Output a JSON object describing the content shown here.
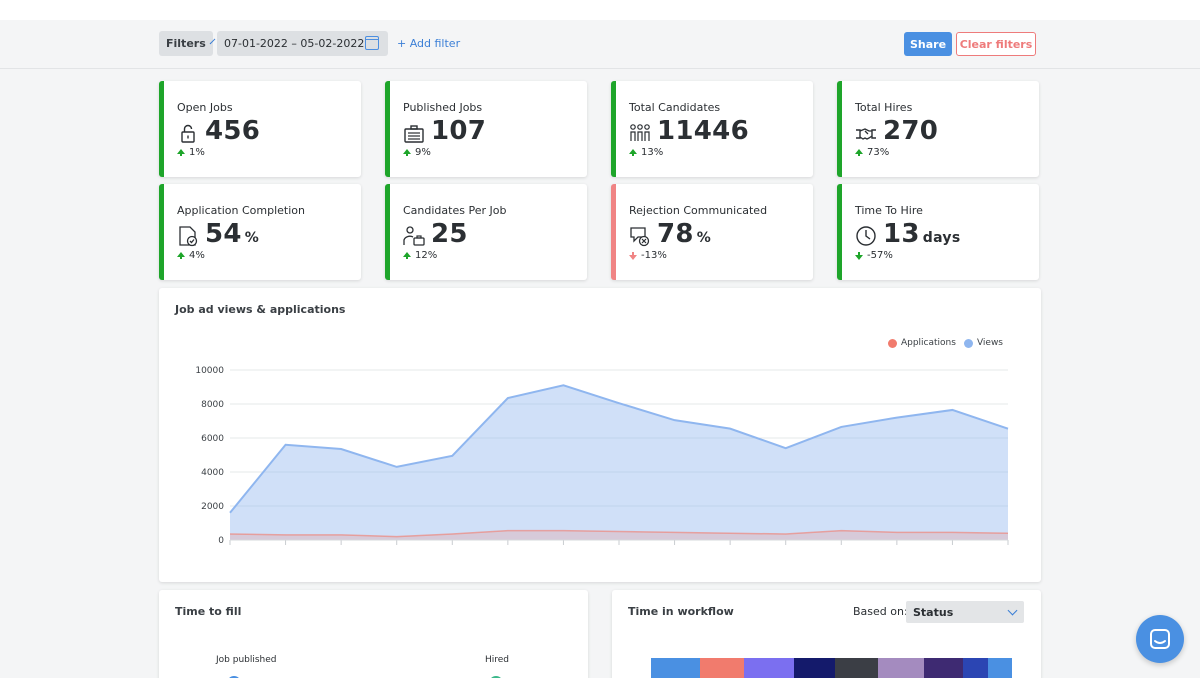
{
  "toolbar": {
    "filters_label": "Filters",
    "date_range": "07-01-2022 – 05-02-2022",
    "add_filter_label": "+ Add filter",
    "share_label": "Share",
    "clear_filters_label": "Clear filters"
  },
  "colors": {
    "accent": "#4a90e2",
    "positive": "#1ea52a",
    "negative": "#f08484",
    "applications": "#f17b6d",
    "views": "#8fb6ef"
  },
  "kpis": [
    {
      "title": "Open Jobs",
      "icon": "lock-icon",
      "value": "456",
      "unit": "",
      "change": "1%",
      "direction": "up"
    },
    {
      "title": "Published Jobs",
      "icon": "job-board-icon",
      "value": "107",
      "unit": "",
      "change": "9%",
      "direction": "up"
    },
    {
      "title": "Total Candidates",
      "icon": "people-icon",
      "value": "11446",
      "unit": "",
      "change": "13%",
      "direction": "up"
    },
    {
      "title": "Total Hires",
      "icon": "handshake-icon",
      "value": "270",
      "unit": "",
      "change": "73%",
      "direction": "up"
    },
    {
      "title": "Application Completion",
      "icon": "document-check-icon",
      "value": "54",
      "unit": "%",
      "change": "4%",
      "direction": "up"
    },
    {
      "title": "Candidates Per Job",
      "icon": "candidate-briefcase-icon",
      "value": "25",
      "unit": "",
      "change": "12%",
      "direction": "up"
    },
    {
      "title": "Rejection Communicated",
      "icon": "message-reject-icon",
      "value": "78",
      "unit": "%",
      "change": "-13%",
      "direction": "down-negative"
    },
    {
      "title": "Time To Hire",
      "icon": "clock-icon",
      "value": "13",
      "unit": "days",
      "change": "-57%",
      "direction": "down"
    }
  ],
  "chart_data": {
    "type": "area",
    "title": "Job ad views & applications",
    "xlabel": "",
    "ylabel": "",
    "ylim": [
      0,
      10000
    ],
    "yticks": [
      "10000",
      "8000",
      "6000",
      "4000",
      "2000",
      "0"
    ],
    "x": [
      0,
      1,
      2,
      3,
      4,
      5,
      6,
      7,
      8,
      9,
      10,
      11,
      12,
      13,
      14
    ],
    "legend_position": "top-right",
    "grid": true,
    "series": [
      {
        "name": "Applications",
        "color": "#f17b6d",
        "values": [
          350,
          300,
          300,
          200,
          350,
          550,
          550,
          500,
          450,
          400,
          350,
          550,
          450,
          450,
          400
        ]
      },
      {
        "name": "Views",
        "color": "#8fb6ef",
        "values": [
          1600,
          5600,
          5350,
          4300,
          4950,
          8350,
          9100,
          8050,
          7050,
          6550,
          5400,
          6650,
          7200,
          7650,
          6550
        ]
      }
    ]
  },
  "time_to_fill": {
    "title": "Time to fill",
    "start_label": "Job published",
    "end_label": "Hired"
  },
  "time_in_workflow": {
    "title": "Time in workflow",
    "based_on_label": "Based on:",
    "selected": "Status",
    "segment_colors": [
      "#4a90e2",
      "#f17b6d",
      "#7b6ff0",
      "#141a6b",
      "#3b3e45",
      "#a48bbf",
      "#3e2a72",
      "#2b45b3",
      "#4a90e2"
    ]
  }
}
